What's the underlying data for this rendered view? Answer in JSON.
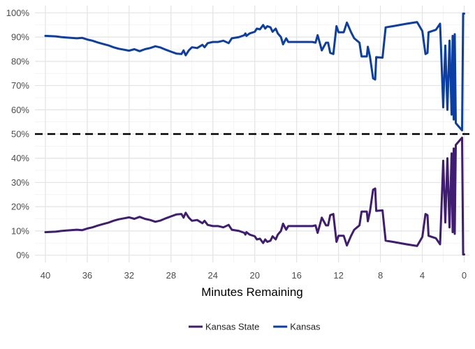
{
  "chart_data": {
    "type": "line",
    "title": "",
    "xlabel": "Minutes Remaining",
    "ylabel": "",
    "x_reversed": true,
    "xlim": [
      41,
      -0.5
    ],
    "ylim": [
      -3,
      103
    ],
    "x_ticks": [
      40,
      36,
      32,
      28,
      24,
      20,
      16,
      12,
      8,
      4,
      0
    ],
    "x_tick_labels": [
      "40",
      "36",
      "32",
      "28",
      "24",
      "20",
      "16",
      "12",
      "8",
      "4",
      "0"
    ],
    "y_ticks": [
      0,
      10,
      20,
      30,
      40,
      50,
      60,
      70,
      80,
      90,
      100
    ],
    "y_tick_labels": [
      "0%",
      "10%",
      "20%",
      "30%",
      "40%",
      "50%",
      "60%",
      "70%",
      "80%",
      "90%",
      "100%"
    ],
    "grid": true,
    "reference_line": {
      "y": 50,
      "style": "dashed",
      "color": "#000000"
    },
    "legend": {
      "position": "bottom"
    },
    "series": [
      {
        "name": "Kansas State",
        "color": "#3f1d72",
        "points": [
          [
            40,
            9.5
          ],
          [
            39,
            9.7
          ],
          [
            38.5,
            10
          ],
          [
            38,
            10.2
          ],
          [
            37,
            10.5
          ],
          [
            36.5,
            10.3
          ],
          [
            36,
            11
          ],
          [
            35.5,
            11.5
          ],
          [
            35,
            12.2
          ],
          [
            34.5,
            12.8
          ],
          [
            34,
            13.4
          ],
          [
            33.5,
            14.2
          ],
          [
            33,
            14.8
          ],
          [
            32.5,
            15.2
          ],
          [
            32,
            15.6
          ],
          [
            31.5,
            15
          ],
          [
            31,
            15.8
          ],
          [
            30.5,
            15
          ],
          [
            30,
            14.5
          ],
          [
            29.5,
            13.8
          ],
          [
            29,
            14.3
          ],
          [
            28.5,
            15.2
          ],
          [
            28,
            16
          ],
          [
            27.5,
            16.8
          ],
          [
            27,
            17
          ],
          [
            26.8,
            15.5
          ],
          [
            26.6,
            17.5
          ],
          [
            26.3,
            15.5
          ],
          [
            26,
            14.2
          ],
          [
            25.5,
            14.5
          ],
          [
            25,
            13.2
          ],
          [
            24.8,
            14.2
          ],
          [
            24.5,
            12.5
          ],
          [
            24,
            12
          ],
          [
            23.5,
            12
          ],
          [
            23,
            11.5
          ],
          [
            22.5,
            12.5
          ],
          [
            22.2,
            10.5
          ],
          [
            21.5,
            10
          ],
          [
            21,
            9.2
          ],
          [
            20.9,
            8.5
          ],
          [
            20.8,
            9.5
          ],
          [
            20.5,
            8.5
          ],
          [
            20,
            7.8
          ],
          [
            19.8,
            6.5
          ],
          [
            19.5,
            6.8
          ],
          [
            19.2,
            5
          ],
          [
            19,
            6.5
          ],
          [
            18.8,
            5.5
          ],
          [
            18.5,
            6
          ],
          [
            18.3,
            7.8
          ],
          [
            18,
            6.5
          ],
          [
            17.8,
            8.5
          ],
          [
            17.5,
            10
          ],
          [
            17.3,
            13
          ],
          [
            17,
            10.5
          ],
          [
            16.8,
            12
          ],
          [
            16,
            12
          ],
          [
            15,
            12
          ],
          [
            14.5,
            12
          ],
          [
            14.2,
            12.3
          ],
          [
            14,
            9.2
          ],
          [
            13.8,
            12.3
          ],
          [
            13.6,
            15.5
          ],
          [
            13.2,
            12.3
          ],
          [
            13,
            12.3
          ],
          [
            12.8,
            16.5
          ],
          [
            12.5,
            17
          ],
          [
            12.2,
            5.5
          ],
          [
            12,
            8
          ],
          [
            11.5,
            8
          ],
          [
            11.2,
            4
          ],
          [
            10.8,
            8
          ],
          [
            10.5,
            10.5
          ],
          [
            10,
            12.3
          ],
          [
            9.8,
            18
          ],
          [
            9.3,
            18
          ],
          [
            9.2,
            14
          ],
          [
            9,
            18
          ],
          [
            8.7,
            27
          ],
          [
            8.5,
            27.5
          ],
          [
            8.4,
            18.3
          ],
          [
            7.8,
            18.5
          ],
          [
            7.5,
            6
          ],
          [
            6.8,
            5.5
          ],
          [
            5.5,
            4.5
          ],
          [
            4.5,
            3.8
          ],
          [
            4,
            7.5
          ],
          [
            3.7,
            17
          ],
          [
            3.5,
            16.5
          ],
          [
            3.4,
            8
          ],
          [
            2.7,
            7
          ],
          [
            2.3,
            4.5
          ],
          [
            2.2,
            15.5
          ],
          [
            2,
            39
          ],
          [
            1.8,
            13.5
          ],
          [
            1.6,
            40
          ],
          [
            1.4,
            11.5
          ],
          [
            1.2,
            42
          ],
          [
            1.1,
            9.5
          ],
          [
            1,
            44
          ],
          [
            0.9,
            8.8
          ],
          [
            0.8,
            45.5
          ],
          [
            0.5,
            47
          ],
          [
            0.2,
            48.5
          ],
          [
            0.1,
            0.3
          ],
          [
            0,
            0.3
          ]
        ]
      },
      {
        "name": "Kansas",
        "color": "#0c3fa5",
        "points": [
          [
            40,
            90.5
          ],
          [
            39,
            90.3
          ],
          [
            38.5,
            90
          ],
          [
            38,
            89.8
          ],
          [
            37,
            89.5
          ],
          [
            36.5,
            89.7
          ],
          [
            36,
            89
          ],
          [
            35.5,
            88.5
          ],
          [
            35,
            87.8
          ],
          [
            34.5,
            87.2
          ],
          [
            34,
            86.6
          ],
          [
            33.5,
            85.8
          ],
          [
            33,
            85.2
          ],
          [
            32.5,
            84.8
          ],
          [
            32,
            84.4
          ],
          [
            31.5,
            85
          ],
          [
            31,
            84.2
          ],
          [
            30.5,
            85
          ],
          [
            30,
            85.5
          ],
          [
            29.5,
            86.2
          ],
          [
            29,
            85.7
          ],
          [
            28.5,
            84.8
          ],
          [
            28,
            84
          ],
          [
            27.5,
            83.2
          ],
          [
            27,
            83
          ],
          [
            26.8,
            84.5
          ],
          [
            26.6,
            82.5
          ],
          [
            26.3,
            84.5
          ],
          [
            26,
            85.8
          ],
          [
            25.5,
            85.5
          ],
          [
            25,
            86.8
          ],
          [
            24.8,
            85.8
          ],
          [
            24.5,
            87.5
          ],
          [
            24,
            88
          ],
          [
            23.5,
            88
          ],
          [
            23,
            88.5
          ],
          [
            22.5,
            87.5
          ],
          [
            22.2,
            89.5
          ],
          [
            21.5,
            90
          ],
          [
            21,
            90.8
          ],
          [
            20.9,
            91.5
          ],
          [
            20.8,
            90.5
          ],
          [
            20.5,
            91.5
          ],
          [
            20,
            92.2
          ],
          [
            19.8,
            93.5
          ],
          [
            19.5,
            93.2
          ],
          [
            19.2,
            95
          ],
          [
            19,
            93.5
          ],
          [
            18.8,
            94.5
          ],
          [
            18.5,
            94
          ],
          [
            18.3,
            92.2
          ],
          [
            18,
            93.5
          ],
          [
            17.8,
            91.5
          ],
          [
            17.5,
            90
          ],
          [
            17.3,
            87
          ],
          [
            17,
            89.5
          ],
          [
            16.8,
            88
          ],
          [
            16,
            88
          ],
          [
            15,
            88
          ],
          [
            14.5,
            88
          ],
          [
            14.2,
            87.7
          ],
          [
            14,
            90.8
          ],
          [
            13.8,
            87.7
          ],
          [
            13.6,
            84.5
          ],
          [
            13.2,
            87.7
          ],
          [
            13,
            87.7
          ],
          [
            12.8,
            83.5
          ],
          [
            12.5,
            83
          ],
          [
            12.2,
            94.5
          ],
          [
            12,
            92
          ],
          [
            11.5,
            92
          ],
          [
            11.2,
            96
          ],
          [
            10.8,
            92
          ],
          [
            10.5,
            89.5
          ],
          [
            10,
            87.7
          ],
          [
            9.8,
            82
          ],
          [
            9.3,
            82
          ],
          [
            9.2,
            86
          ],
          [
            9,
            82
          ],
          [
            8.7,
            73
          ],
          [
            8.5,
            72.5
          ],
          [
            8.4,
            81.7
          ],
          [
            7.8,
            81.5
          ],
          [
            7.5,
            94
          ],
          [
            6.8,
            94.5
          ],
          [
            5.5,
            95.5
          ],
          [
            4.5,
            96.2
          ],
          [
            4,
            92.5
          ],
          [
            3.7,
            83
          ],
          [
            3.5,
            83.5
          ],
          [
            3.4,
            92
          ],
          [
            2.7,
            93
          ],
          [
            2.3,
            95.5
          ],
          [
            2.2,
            84.5
          ],
          [
            2,
            61
          ],
          [
            1.8,
            86.5
          ],
          [
            1.6,
            60
          ],
          [
            1.4,
            88.5
          ],
          [
            1.2,
            58
          ],
          [
            1.1,
            90.5
          ],
          [
            1,
            56
          ],
          [
            0.9,
            91.2
          ],
          [
            0.8,
            54.5
          ],
          [
            0.5,
            53
          ],
          [
            0.2,
            51.5
          ],
          [
            0.1,
            99.7
          ],
          [
            0,
            99.7
          ]
        ]
      }
    ]
  }
}
